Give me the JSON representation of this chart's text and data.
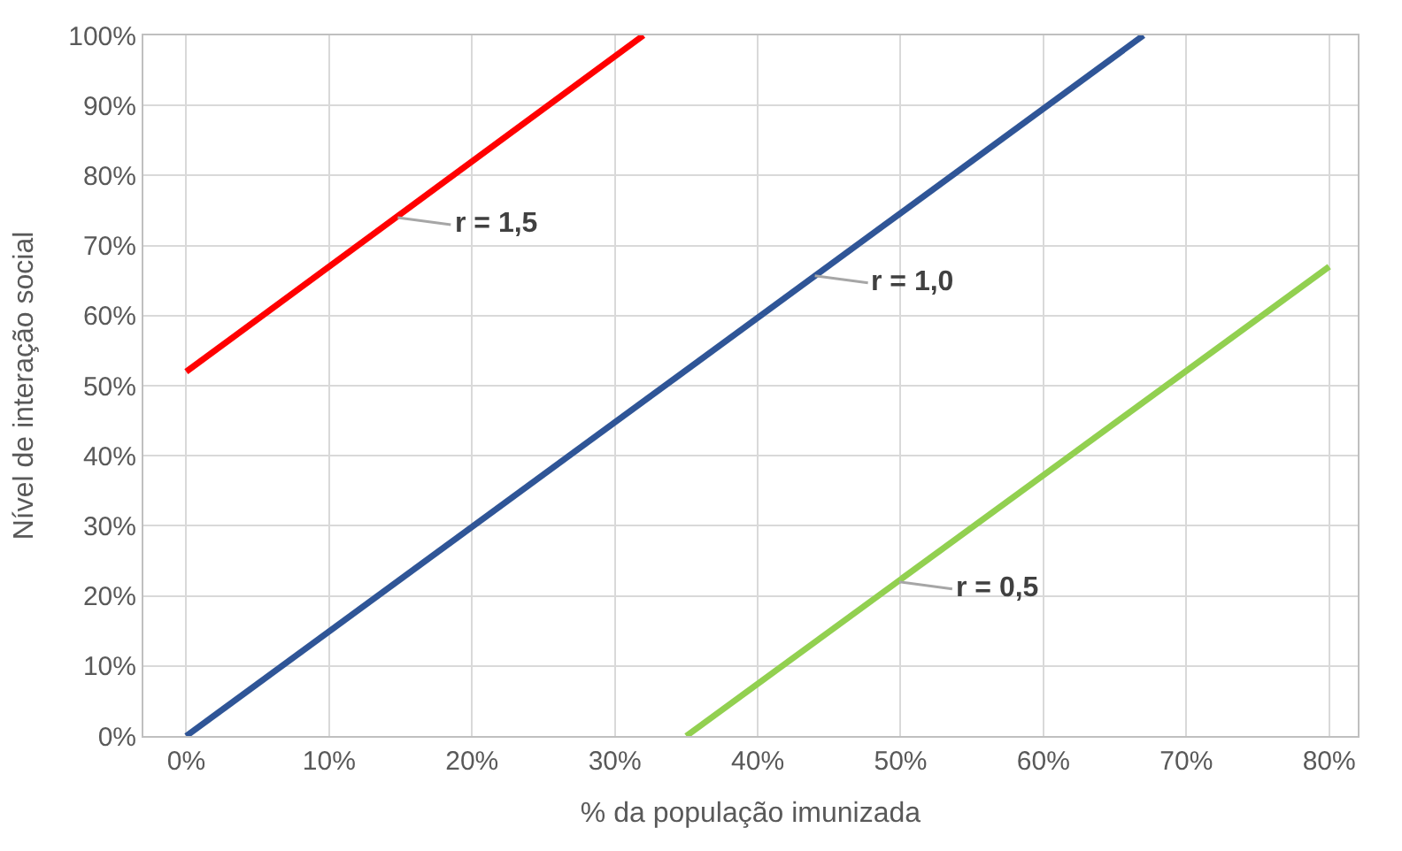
{
  "chart_data": {
    "type": "line",
    "xlabel": "% da população imunizada",
    "ylabel": "Nível de interação social",
    "series": [
      {
        "color": "#ff0000",
        "x": [
          0,
          32
        ],
        "values": [
          52,
          100
        ]
      },
      {
        "color": "#2f5597",
        "x": [
          0,
          67
        ],
        "values": [
          0,
          100
        ]
      },
      {
        "color": "#92d050",
        "x": [
          35,
          80
        ],
        "values": [
          0,
          67
        ]
      }
    ],
    "xlim": [
      -3,
      82
    ],
    "ylim": [
      0,
      100
    ],
    "xticks": [
      {
        "value": 0,
        "label": "0%"
      },
      {
        "value": 10,
        "label": "10%"
      },
      {
        "value": 20,
        "label": "20%"
      },
      {
        "value": 30,
        "label": "30%"
      },
      {
        "value": 40,
        "label": "40%"
      },
      {
        "value": 50,
        "label": "50%"
      },
      {
        "value": 60,
        "label": "60%"
      },
      {
        "value": 70,
        "label": "70%"
      },
      {
        "value": 80,
        "label": "80%"
      }
    ],
    "yticks": [
      {
        "value": 0,
        "label": "0%"
      },
      {
        "value": 10,
        "label": "10%"
      },
      {
        "value": 20,
        "label": "20%"
      },
      {
        "value": 30,
        "label": "30%"
      },
      {
        "value": 40,
        "label": "40%"
      },
      {
        "value": 50,
        "label": "50%"
      },
      {
        "value": 60,
        "label": "60%"
      },
      {
        "value": 70,
        "label": "70%"
      },
      {
        "value": 80,
        "label": "80%"
      },
      {
        "value": 90,
        "label": "90%"
      },
      {
        "value": 100,
        "label": "100%"
      }
    ],
    "grid": true,
    "marker": "none",
    "line_style": "solid",
    "annotations": [
      {
        "text": "r = 1,5",
        "x": 14.8,
        "y": 74
      },
      {
        "text": "r = 1,0",
        "x": 44,
        "y": 65.7
      },
      {
        "text": "r = 0,5",
        "x": 49.9,
        "y": 22
      }
    ]
  }
}
